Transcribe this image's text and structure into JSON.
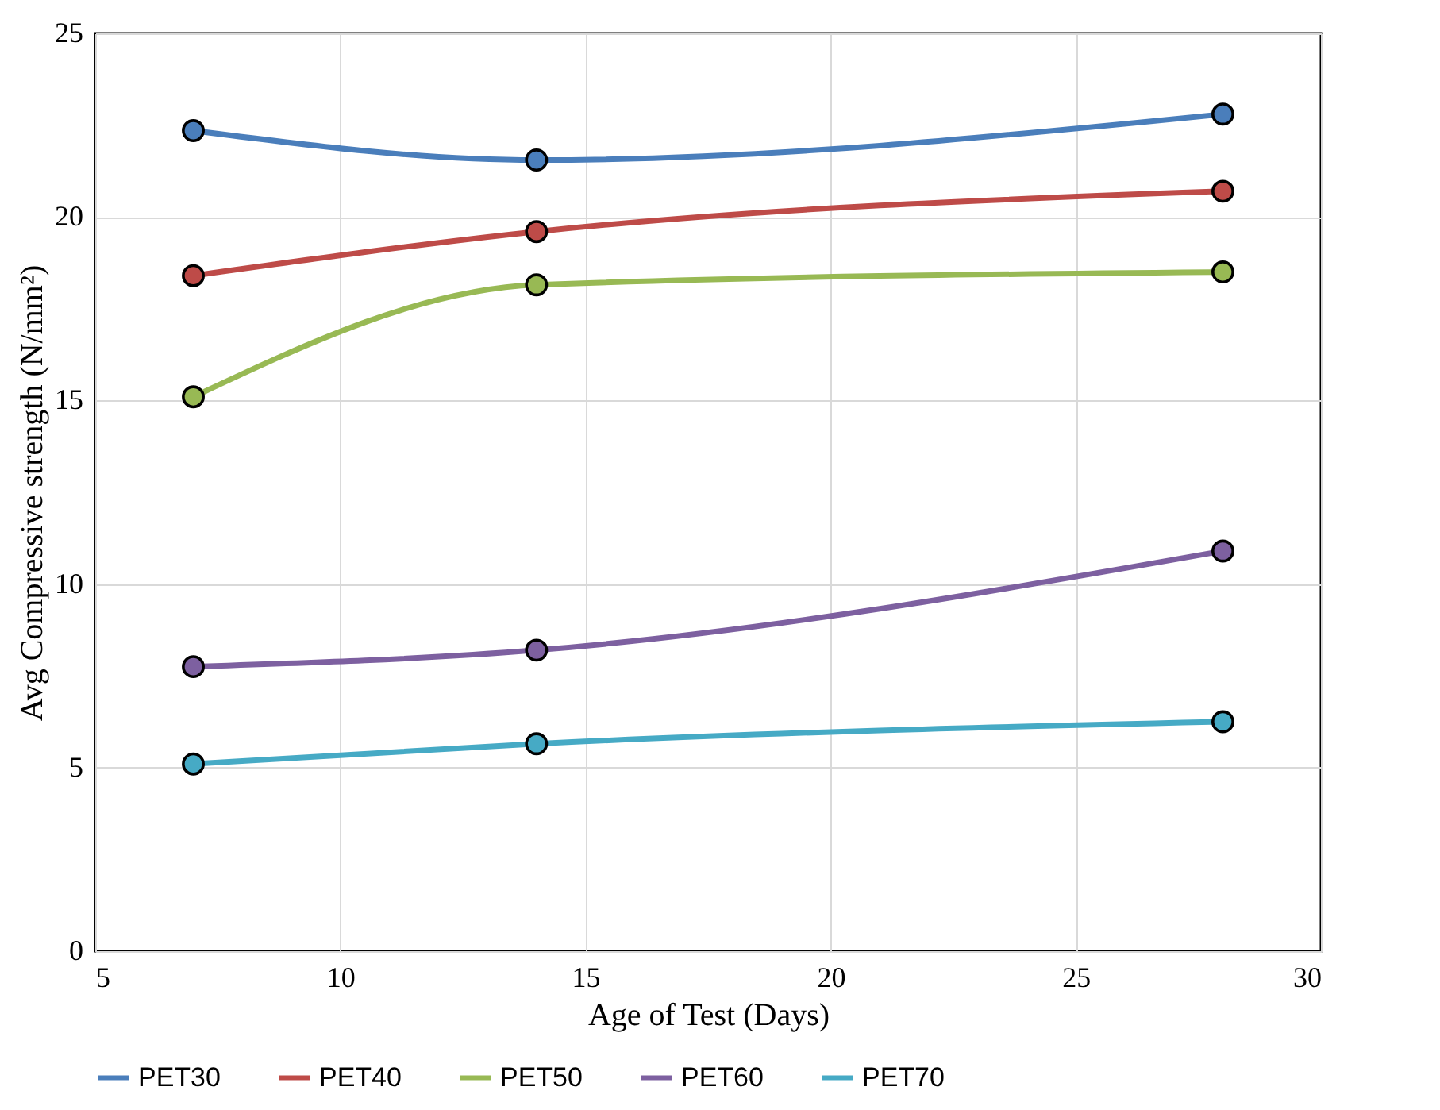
{
  "chart_data": {
    "type": "line",
    "xlabel": "Age of Test (Days)",
    "ylabel": "Avg Compressive strength (N/mm²)",
    "x": [
      7,
      14,
      28
    ],
    "series": [
      {
        "name": "PET30",
        "color": "#4a7ebb",
        "values": [
          22.35,
          21.55,
          22.8
        ]
      },
      {
        "name": "PET40",
        "color": "#be4b48",
        "values": [
          18.4,
          19.6,
          20.7
        ]
      },
      {
        "name": "PET50",
        "color": "#98b954",
        "values": [
          15.1,
          18.15,
          18.5
        ]
      },
      {
        "name": "PET60",
        "color": "#7d60a0",
        "values": [
          7.75,
          8.2,
          10.9
        ]
      },
      {
        "name": "PET70",
        "color": "#46aac5",
        "values": [
          5.1,
          5.65,
          6.25
        ]
      }
    ],
    "xlim": [
      5,
      30
    ],
    "xticks": [
      5,
      10,
      15,
      20,
      25,
      30
    ],
    "ylim": [
      0,
      25
    ],
    "yticks": [
      0,
      5,
      10,
      15,
      20,
      25
    ],
    "grid": true,
    "legend": "bottom",
    "marker": "circle",
    "line_style": "solid"
  }
}
